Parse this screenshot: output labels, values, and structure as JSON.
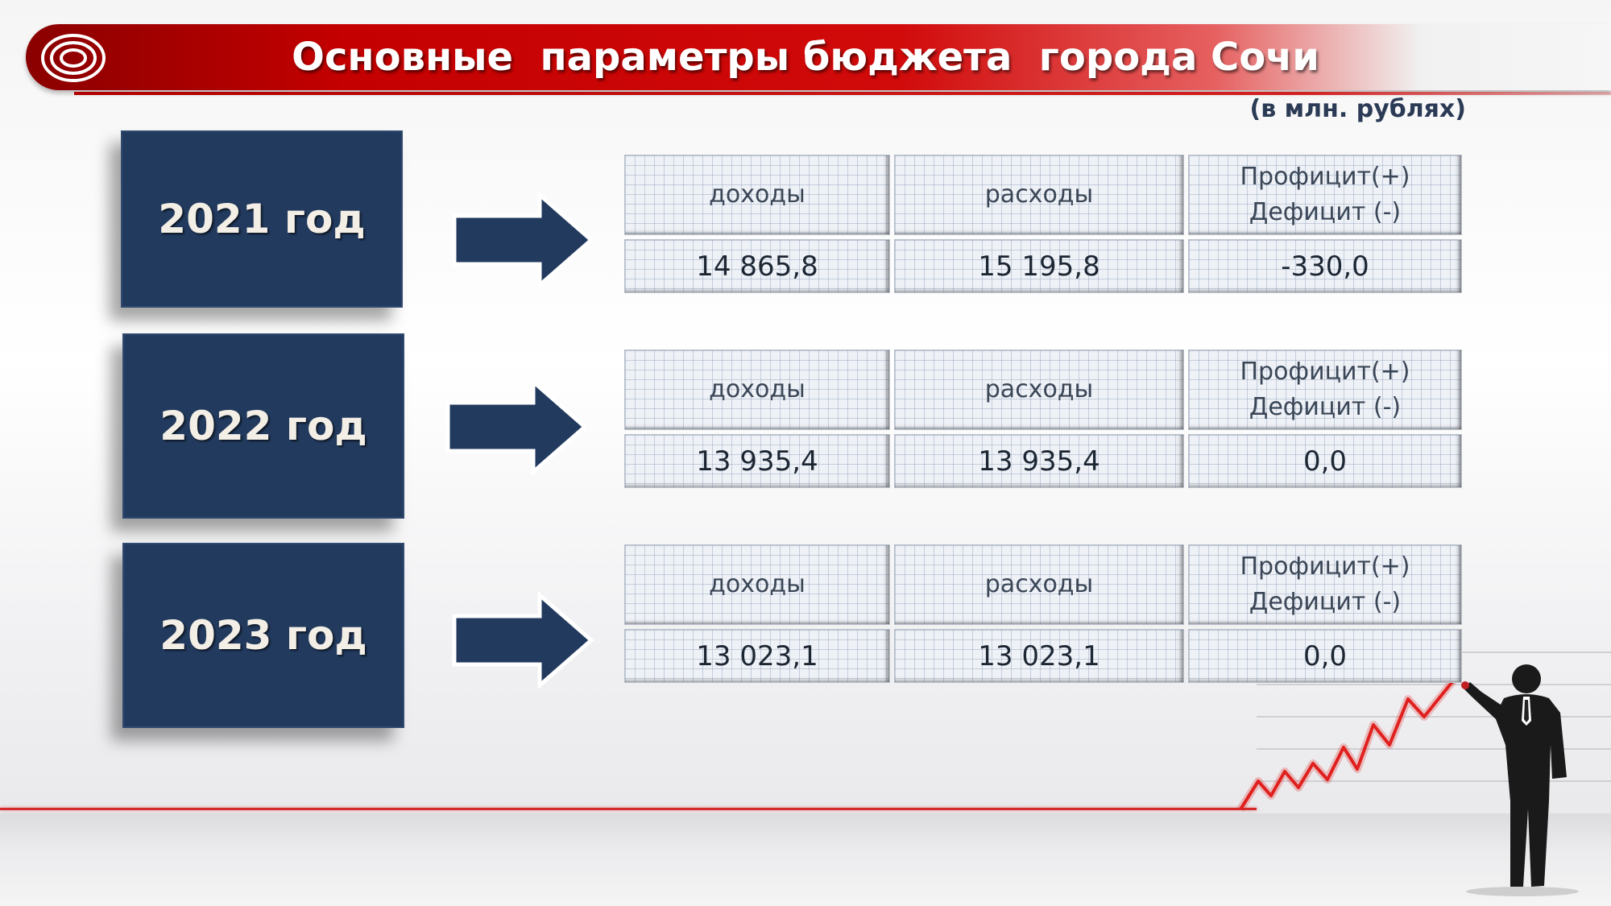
{
  "header": {
    "title": "Основные  параметры бюджета  города Сочи",
    "units": "(в млн. рублях)"
  },
  "rows": [
    {
      "year": "2021 год",
      "income_label": "доходы",
      "expense_label": "расходы",
      "balance_label_1": "Профицит(+)",
      "balance_label_2": "Дефицит (-)",
      "income": "14 865,8",
      "expense": "15 195,8",
      "balance": "-330,0"
    },
    {
      "year": "2022 год",
      "income_label": "доходы",
      "expense_label": "расходы",
      "balance_label_1": "Профицит(+)",
      "balance_label_2": "Дефицит (-)",
      "income": "13 935,4",
      "expense": "13 935,4",
      "balance": "0,0"
    },
    {
      "year": "2023 год",
      "income_label": "доходы",
      "expense_label": "расходы",
      "balance_label_1": "Профицит(+)",
      "balance_label_2": "Дефицит (-)",
      "income": "13 023,1",
      "expense": "13 023,1",
      "balance": "0,0"
    }
  ],
  "icons": {
    "logo": "concentric-rings-icon",
    "arrow": "right-arrow-icon",
    "figure": "businessman-silhouette-icon",
    "trend": "rising-zigzag-line-icon"
  },
  "colors": {
    "banner_red": "#c40000",
    "year_box": "#223a5e",
    "accent_line": "#d42a2a"
  }
}
